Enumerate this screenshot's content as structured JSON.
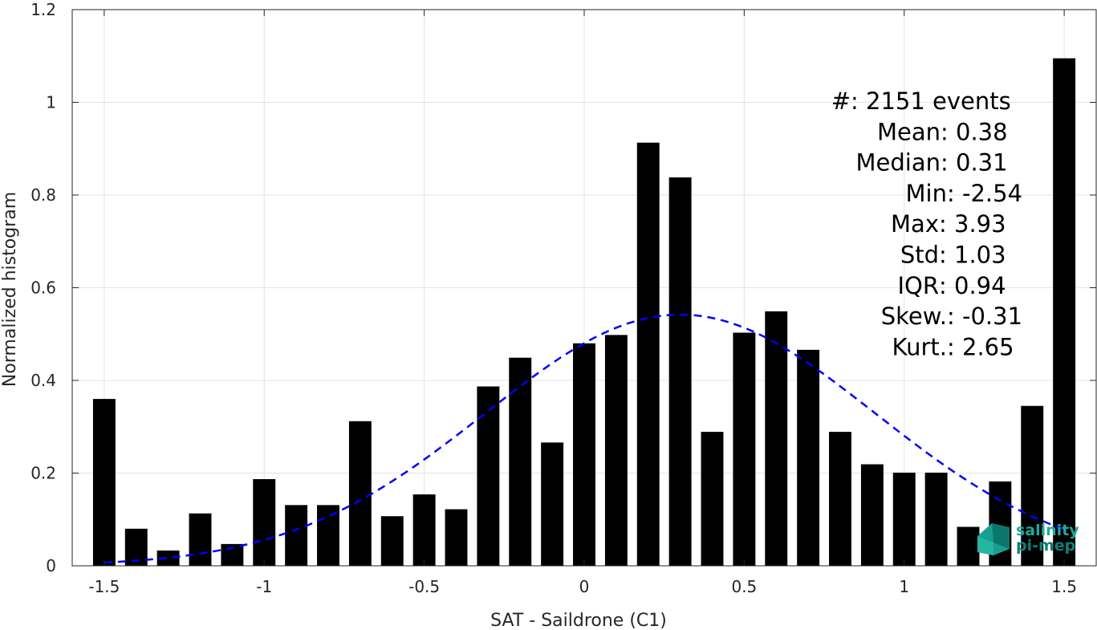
{
  "chart_data": {
    "type": "bar",
    "xlabel": "SAT - Saildrone (C1)",
    "ylabel": "Normalized histogram",
    "xlim": [
      -1.6,
      1.6
    ],
    "ylim": [
      0,
      1.2
    ],
    "grid": true,
    "bar_width": 0.07,
    "x": [
      -1.5,
      -1.4,
      -1.3,
      -1.2,
      -1.1,
      -1.0,
      -0.9,
      -0.8,
      -0.7,
      -0.6,
      -0.5,
      -0.4,
      -0.3,
      -0.2,
      -0.1,
      0.0,
      0.1,
      0.2,
      0.3,
      0.4,
      0.5,
      0.6,
      0.7,
      0.8,
      0.9,
      1.0,
      1.1,
      1.2,
      1.3,
      1.4,
      1.5
    ],
    "values": [
      0.36,
      0.08,
      0.033,
      0.113,
      0.047,
      0.187,
      0.131,
      0.131,
      0.312,
      0.107,
      0.154,
      0.122,
      0.387,
      0.449,
      0.266,
      0.48,
      0.498,
      0.913,
      0.838,
      0.289,
      0.503,
      0.549,
      0.466,
      0.289,
      0.219,
      0.201,
      0.201,
      0.084,
      0.182,
      0.345,
      1.095
    ],
    "bar_color": "#000000",
    "fit_curve": {
      "style": "dashed",
      "color": "#0000ff",
      "mean": 0.3,
      "std": 0.61,
      "peak": 0.542,
      "x_range": [
        -1.5,
        1.5
      ]
    },
    "x_ticks": [
      -1.5,
      -1,
      -0.5,
      0,
      0.5,
      1,
      1.5
    ],
    "x_tick_labels": [
      "-1.5",
      "-1",
      "-0.5",
      "0",
      "0.5",
      "1",
      "1.5"
    ],
    "y_ticks": [
      0,
      0.2,
      0.4,
      0.6,
      0.8,
      1,
      1.2
    ],
    "y_tick_labels": [
      "0",
      "0.2",
      "0.4",
      "0.6",
      "0.8",
      "1",
      "1.2"
    ]
  },
  "stats": [
    {
      "label": "#  ",
      "value": ": 2151 events"
    },
    {
      "label": "Mean ",
      "value": ": 0.38"
    },
    {
      "label": "Median ",
      "value": ": 0.31"
    },
    {
      "label": "Min ",
      "value": ": -2.54"
    },
    {
      "label": "Max ",
      "value": ": 3.93"
    },
    {
      "label": "Std ",
      "value": ": 1.03"
    },
    {
      "label": "IQR ",
      "value": ": 0.94"
    },
    {
      "label": "Skew. ",
      "value": ": -0.31"
    },
    {
      "label": "Kurt. ",
      "value": ": 2.65"
    }
  ],
  "logo": {
    "line1": "salinity",
    "line2": "pi-mep",
    "color1": "#1fa89a",
    "color2": "#0e7f78"
  }
}
